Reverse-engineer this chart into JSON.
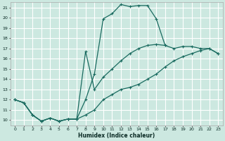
{
  "xlabel": "Humidex (Indice chaleur)",
  "bg_color": "#cce8e0",
  "grid_color": "#ffffff",
  "line_color": "#1a6b60",
  "xlim": [
    -0.5,
    23.5
  ],
  "ylim": [
    9.5,
    21.5
  ],
  "xticks": [
    0,
    1,
    2,
    3,
    4,
    5,
    6,
    7,
    8,
    9,
    10,
    11,
    12,
    13,
    14,
    15,
    16,
    17,
    18,
    19,
    20,
    21,
    22,
    23
  ],
  "yticks": [
    10,
    11,
    12,
    13,
    14,
    15,
    16,
    17,
    18,
    19,
    20,
    21
  ],
  "line1_x": [
    0,
    1,
    2,
    3,
    4,
    5,
    6,
    7,
    8,
    9,
    10,
    11,
    12,
    13,
    14,
    15,
    16,
    17,
    18,
    19,
    20,
    21,
    22,
    23
  ],
  "line1_y": [
    12.0,
    11.7,
    10.5,
    9.9,
    10.2,
    9.9,
    10.1,
    10.1,
    10.5,
    11.0,
    12.0,
    12.5,
    13.0,
    13.2,
    13.5,
    14.0,
    14.5,
    15.2,
    15.8,
    16.2,
    16.5,
    16.8,
    17.0,
    16.5
  ],
  "line2_x": [
    0,
    1,
    2,
    3,
    4,
    5,
    6,
    7,
    8,
    9,
    10,
    11,
    12,
    13,
    14,
    15,
    16,
    17,
    18,
    19,
    20,
    21,
    22,
    23
  ],
  "line2_y": [
    12.0,
    11.7,
    10.5,
    9.9,
    10.2,
    9.9,
    10.1,
    10.1,
    12.0,
    14.5,
    19.9,
    20.4,
    21.3,
    21.1,
    21.2,
    21.2,
    19.9,
    17.3,
    null,
    null,
    null,
    null,
    null,
    null
  ],
  "line3_x": [
    0,
    1,
    2,
    3,
    4,
    5,
    6,
    7,
    8,
    9,
    10,
    11,
    12,
    13,
    14,
    15,
    16,
    17,
    18,
    19,
    20,
    21,
    22,
    23
  ],
  "line3_y": [
    12.0,
    11.7,
    10.5,
    9.9,
    10.2,
    9.9,
    10.1,
    10.1,
    16.7,
    13.0,
    14.2,
    15.0,
    15.8,
    16.5,
    17.0,
    17.3,
    17.4,
    17.3,
    17.0,
    17.2,
    17.2,
    17.0,
    17.0,
    16.5
  ]
}
